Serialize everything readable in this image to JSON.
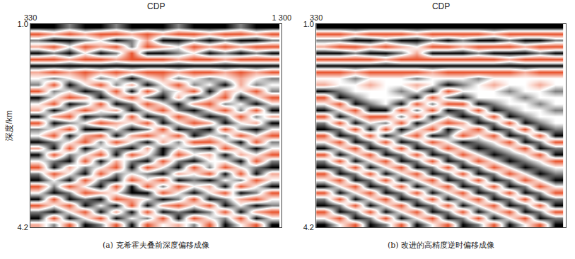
{
  "chart_data": [
    {
      "type": "heatmap",
      "title": "(a) 克希霍夫叠前深度偏移成像",
      "x_label": "CDP",
      "y_label": "深度/km",
      "xlim": [
        330,
        1300
      ],
      "xticks": [
        330,
        {
          "value": 1300,
          "label": "1 300"
        }
      ],
      "ylim": [
        4.2,
        1.0
      ],
      "yticks": [
        {
          "value": 1.0,
          "label": "1.0"
        },
        4.2
      ],
      "grid": false,
      "colors": [
        "#e8542e",
        "#ffffff",
        "#000000"
      ],
      "zlim": [
        -1,
        1
      ],
      "x": [
        360,
        420,
        480,
        540,
        600,
        660,
        720,
        780,
        840,
        900,
        960,
        1020,
        1080,
        1140,
        1200,
        1260
      ],
      "y": [
        1.05,
        1.15,
        1.25,
        1.35,
        1.45,
        1.55,
        1.65,
        1.75,
        1.85,
        1.95,
        2.05,
        2.15,
        2.25,
        2.35,
        2.45,
        2.55,
        2.65,
        2.75,
        2.85,
        2.95,
        3.05,
        3.15,
        3.25,
        3.35,
        3.45,
        3.55,
        3.65,
        3.75,
        3.85,
        3.95,
        4.05,
        4.15
      ],
      "z": [
        [
          1,
          1,
          0.5,
          1,
          1,
          0.5,
          1,
          1,
          1,
          0.5,
          1,
          1,
          1,
          0.5,
          1,
          1
        ],
        [
          -1,
          -0.5,
          -1,
          -0.5,
          -1,
          -1,
          -0.5,
          -1,
          -0.5,
          -1,
          -1,
          -0.5,
          -1,
          -1,
          -0.5,
          -1
        ],
        [
          0.5,
          1,
          1,
          0.5,
          0,
          1,
          0.5,
          -0.5,
          1,
          1,
          0.5,
          1,
          0.5,
          1,
          1,
          0.5
        ],
        [
          -0.5,
          -1,
          0,
          -1,
          -0.5,
          -1,
          0.5,
          -1,
          -0.5,
          0,
          -1,
          -0.5,
          -1,
          -0.5,
          -1,
          -1
        ],
        [
          1,
          0.5,
          1,
          0,
          1,
          0.5,
          -1,
          1,
          1,
          0.5,
          0,
          1,
          0.5,
          1,
          0.5,
          1
        ],
        [
          -1,
          -1,
          -0.5,
          -1,
          -1,
          -0.5,
          -1,
          -1,
          -1,
          -0.5,
          -1,
          -1,
          -0.5,
          -1,
          -1,
          -1
        ],
        [
          1,
          1,
          1,
          1,
          1,
          1,
          1,
          1,
          1,
          1,
          1,
          1,
          1,
          1,
          1,
          1
        ],
        [
          -0.5,
          -1,
          -0.5,
          -1,
          -0.5,
          -1,
          -0.5,
          -1,
          -1,
          -0.5,
          -1,
          -1,
          -0.5,
          -1,
          -0.5,
          -1
        ],
        [
          0,
          0.5,
          0,
          -0.5,
          0.5,
          0,
          1,
          0,
          -0.5,
          0.5,
          0,
          0.5,
          0,
          -0.5,
          0,
          0.5
        ],
        [
          0.5,
          -1,
          1,
          0,
          -1,
          0.5,
          -0.5,
          1,
          0,
          -1,
          0.5,
          0,
          1,
          -0.5,
          0.5,
          0
        ],
        [
          -1,
          0.5,
          0,
          1,
          0.5,
          -1,
          1,
          -1,
          0.5,
          0,
          -1,
          1,
          -0.5,
          0,
          -1,
          0.5
        ],
        [
          1,
          0,
          -1,
          -0.5,
          1,
          0,
          -1,
          0.5,
          1,
          -0.5,
          1,
          0,
          -1,
          1,
          0,
          -1
        ],
        [
          0,
          -1,
          1,
          0.5,
          -1,
          1,
          0.5,
          -1,
          0,
          1,
          -0.5,
          -1,
          0.5,
          0,
          1,
          0
        ],
        [
          -0.5,
          1,
          0,
          -1,
          0,
          -0.5,
          1,
          0,
          -1,
          0.5,
          1,
          0,
          -1,
          0.5,
          -1,
          1
        ],
        [
          1,
          -0.5,
          -1,
          1,
          0.5,
          1,
          -1,
          1,
          0.5,
          -1,
          0,
          1,
          0.5,
          -1,
          0.5,
          -0.5
        ],
        [
          -1,
          1,
          0.5,
          0,
          -1,
          -0.5,
          0,
          -1,
          1,
          0,
          -1,
          -0.5,
          1,
          0,
          -0.5,
          1
        ],
        [
          0.5,
          0,
          -1,
          1,
          1,
          0,
          1,
          0.5,
          -1,
          1,
          0.5,
          1,
          -1,
          0.5,
          1,
          0
        ],
        [
          0,
          -1,
          1,
          -0.5,
          -1,
          1,
          -0.5,
          -1,
          0,
          -1,
          1,
          0,
          0.5,
          -1,
          0,
          -1
        ],
        [
          1,
          0.5,
          0,
          -1,
          0.5,
          -1,
          0,
          1,
          -0.5,
          0.5,
          -1,
          -1,
          0,
          1,
          -1,
          0.5
        ],
        [
          -0.5,
          1,
          -1,
          1,
          0,
          0.5,
          1,
          -0.5,
          1,
          0,
          0.5,
          1,
          -1,
          0,
          1,
          0
        ],
        [
          1,
          -1,
          0.5,
          0,
          -1,
          1,
          -1,
          0,
          1,
          -1,
          0,
          -0.5,
          1,
          -0.5,
          0,
          -1
        ],
        [
          0,
          0.5,
          1,
          -1,
          1,
          -0.5,
          0.5,
          1,
          -1,
          0.5,
          1,
          0,
          0,
          1,
          -1,
          0.5
        ],
        [
          -1,
          1,
          -0.5,
          0.5,
          0,
          -1,
          1,
          -1,
          0,
          1,
          -1,
          0.5,
          -1,
          0,
          0.5,
          1
        ],
        [
          0.5,
          -1,
          0,
          1,
          -1,
          0.5,
          0,
          0.5,
          1,
          -0.5,
          0,
          -1,
          1,
          -1,
          1,
          -0.5
        ],
        [
          1,
          0,
          1,
          -1,
          0.5,
          1,
          -1,
          0,
          -1,
          1,
          0.5,
          1,
          0,
          0.5,
          -1,
          0
        ],
        [
          -1,
          0.5,
          -1,
          0,
          1,
          -1,
          1,
          -1,
          0.5,
          -1,
          0,
          -0.5,
          1,
          -1,
          0,
          1
        ],
        [
          0,
          1,
          0.5,
          -1,
          -0.5,
          0,
          1,
          1,
          -1,
          0,
          1,
          0,
          -1,
          1,
          0.5,
          -1
        ],
        [
          1,
          -1,
          1,
          0.5,
          1,
          -1,
          -0.5,
          0,
          1,
          0.5,
          -1,
          1,
          0.5,
          -0.5,
          -1,
          0
        ],
        [
          -1,
          0,
          -1,
          1,
          0,
          1,
          -1,
          1,
          -0.5,
          -1,
          0,
          -1,
          1,
          0,
          1,
          0.5
        ],
        [
          0.5,
          1,
          0,
          -1,
          1,
          -0.5,
          1,
          -1,
          1,
          0.5,
          1,
          0.5,
          -1,
          1,
          -0.5,
          -1
        ],
        [
          1,
          -1,
          1,
          0,
          -1,
          1,
          0,
          0.5,
          -1,
          1,
          -1,
          0,
          0.5,
          -1,
          1,
          0
        ],
        [
          -0.5,
          0.5,
          -1,
          1,
          0.5,
          -1,
          1,
          -1,
          0,
          -0.5,
          0.5,
          -1,
          1,
          0,
          -1,
          1
        ]
      ]
    },
    {
      "type": "heatmap",
      "title": "(b) 改进的高精度逆时偏移成像",
      "x_label": "CDP",
      "xlim": [
        330,
        1300
      ],
      "xticks": [
        330,
        {
          "value": 1300,
          "label": "1 300"
        }
      ],
      "ylim": [
        4.2,
        1.0
      ],
      "yticks": [
        {
          "value": 1.0,
          "label": "1.0"
        },
        4.2
      ],
      "grid": false,
      "colors": [
        "#e8542e",
        "#ffffff",
        "#000000"
      ],
      "zlim": [
        -1,
        1
      ],
      "x": [
        360,
        420,
        480,
        540,
        600,
        660,
        720,
        780,
        840,
        900,
        960,
        1020,
        1080,
        1140,
        1200,
        1260
      ],
      "y": [
        1.05,
        1.15,
        1.25,
        1.35,
        1.45,
        1.55,
        1.65,
        1.75,
        1.85,
        1.95,
        2.05,
        2.15,
        2.25,
        2.35,
        2.45,
        2.55,
        2.65,
        2.75,
        2.85,
        2.95,
        3.05,
        3.15,
        3.25,
        3.35,
        3.45,
        3.55,
        3.65,
        3.75,
        3.85,
        3.95,
        4.05,
        4.15
      ],
      "z": [
        [
          1,
          1,
          1,
          1,
          1,
          1,
          1,
          1,
          1,
          1,
          1,
          1,
          1,
          1,
          1,
          1
        ],
        [
          -1,
          -1,
          -0.5,
          -1,
          -1,
          -1,
          -0.5,
          -1,
          -1,
          -1,
          -1,
          -0.5,
          -1,
          -1,
          -1,
          -1
        ],
        [
          0.5,
          0.5,
          1,
          1,
          0.5,
          1,
          1,
          0.5,
          1,
          0.5,
          1,
          1,
          0.5,
          1,
          1,
          0.5
        ],
        [
          -0.5,
          -1,
          -1,
          -0.5,
          -1,
          -0.5,
          0,
          -1,
          -1,
          -0.5,
          -1,
          -1,
          -1,
          -0.5,
          -1,
          -1
        ],
        [
          1,
          1,
          0.5,
          1,
          1,
          0.5,
          -0.5,
          1,
          1,
          1,
          0.5,
          1,
          1,
          1,
          0.5,
          1
        ],
        [
          -1,
          -1,
          -1,
          -1,
          -0.5,
          -1,
          -1,
          -1,
          -1,
          -1,
          -1,
          -1,
          -0.5,
          -1,
          -1,
          -1
        ],
        [
          1,
          1,
          1,
          1,
          1,
          1,
          1,
          1,
          1,
          1,
          1,
          1,
          1,
          1,
          1,
          1
        ],
        [
          -1,
          -1,
          -0.5,
          -1,
          -1,
          -1,
          -1,
          -0.5,
          -1,
          -1,
          -1,
          -1,
          -1,
          -0.5,
          -1,
          -1
        ],
        [
          0,
          0,
          0.5,
          0,
          0,
          0,
          0.5,
          0,
          0,
          0,
          0.5,
          0,
          0,
          0,
          0,
          0
        ],
        [
          -0.5,
          0,
          0,
          -0.5,
          0,
          0,
          -0.5,
          0,
          1,
          0.5,
          0,
          -0.5,
          0,
          0,
          -0.5,
          0
        ],
        [
          1,
          0.5,
          0,
          0,
          0,
          0.5,
          0,
          1,
          -1,
          0,
          0,
          0,
          0.5,
          0,
          0,
          0.5
        ],
        [
          -1,
          1,
          0.5,
          0,
          0,
          0,
          1,
          -1,
          0.5,
          1,
          0,
          0,
          0,
          0.5,
          0,
          0
        ],
        [
          0,
          -1,
          1,
          0.5,
          0,
          1,
          -1,
          0.5,
          -1,
          -1,
          1,
          0.5,
          0,
          0,
          0.5,
          0
        ],
        [
          1,
          0,
          -1,
          1,
          1,
          -1,
          0.5,
          -1,
          1,
          0.5,
          -1,
          1,
          0.5,
          0,
          0,
          0.5
        ],
        [
          -1,
          1,
          0,
          -1,
          -1,
          0.5,
          -1,
          1,
          0,
          1,
          0.5,
          -1,
          1,
          0.5,
          0,
          0
        ],
        [
          0.5,
          -1,
          1,
          0,
          0.5,
          -1,
          1,
          0,
          -1,
          -0.5,
          1,
          0.5,
          -1,
          1,
          0.5,
          0
        ],
        [
          1,
          0.5,
          -1,
          1,
          -1,
          1,
          0,
          -1,
          1,
          0,
          -1,
          1,
          0.5,
          -1,
          1,
          0.5
        ],
        [
          -1,
          1,
          0.5,
          -1,
          1,
          0,
          -1,
          1,
          0.5,
          -1,
          0,
          -1,
          1,
          0.5,
          -1,
          1
        ],
        [
          0,
          -1,
          1,
          0.5,
          -1,
          1,
          0.5,
          -1,
          0,
          1,
          0.5,
          0,
          -1,
          1,
          0.5,
          -1
        ],
        [
          1,
          0,
          -1,
          1,
          0.5,
          -1,
          1,
          0.5,
          -1,
          0,
          1,
          0.5,
          0,
          -1,
          1,
          0.5
        ],
        [
          -1,
          1,
          0,
          -1,
          1,
          0.5,
          -1,
          1,
          0.5,
          -1,
          0,
          1,
          0.5,
          0,
          -1,
          1
        ],
        [
          0.5,
          -1,
          1,
          0,
          -1,
          1,
          0.5,
          -1,
          1,
          0.5,
          -1,
          0,
          1,
          0.5,
          0,
          -1
        ],
        [
          1,
          0.5,
          -1,
          1,
          0,
          -1,
          1,
          0.5,
          -1,
          1,
          0.5,
          -1,
          0,
          1,
          0.5,
          0
        ],
        [
          -1,
          1,
          0.5,
          -1,
          1,
          0,
          -1,
          1,
          0.5,
          -1,
          1,
          0.5,
          -1,
          0,
          1,
          0.5
        ],
        [
          0,
          -1,
          1,
          0.5,
          -1,
          1,
          0,
          -1,
          1,
          0.5,
          -1,
          1,
          0.5,
          -1,
          0,
          1
        ],
        [
          1,
          0,
          -1,
          1,
          0.5,
          -1,
          1,
          0,
          -1,
          1,
          0.5,
          -1,
          1,
          0.5,
          -1,
          0
        ],
        [
          -1,
          1,
          0,
          -1,
          1,
          0.5,
          -1,
          1,
          0,
          -1,
          1,
          0.5,
          -1,
          1,
          0.5,
          -1
        ],
        [
          0.5,
          -1,
          1,
          0,
          -1,
          1,
          0.5,
          -1,
          1,
          0,
          -1,
          1,
          0.5,
          -1,
          1,
          0.5
        ],
        [
          1,
          0.5,
          -1,
          1,
          0,
          -1,
          1,
          0.5,
          -1,
          1,
          0,
          -1,
          1,
          0.5,
          -1,
          1
        ],
        [
          -1,
          1,
          0.5,
          -1,
          1,
          0,
          -1,
          1,
          0.5,
          -1,
          1,
          0,
          -1,
          1,
          0.5,
          -1
        ],
        [
          0,
          -1,
          1,
          0.5,
          -1,
          1,
          0,
          -1,
          1,
          0.5,
          -1,
          1,
          0,
          -1,
          1,
          0.5
        ],
        [
          1,
          0,
          -1,
          1,
          0.5,
          -1,
          1,
          0,
          -1,
          1,
          0.5,
          -1,
          1,
          0,
          -1,
          1
        ]
      ]
    }
  ]
}
